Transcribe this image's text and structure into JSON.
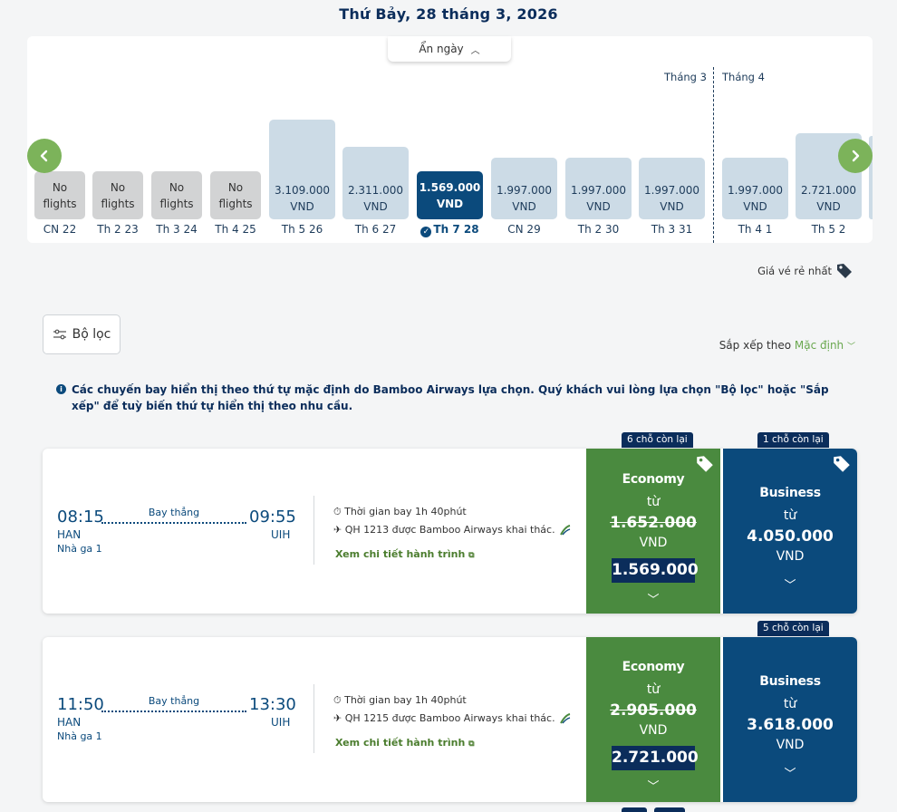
{
  "header": {
    "date_title": "Thứ Bảy, 28 tháng 3, 2026"
  },
  "calendar": {
    "hide_label": "Ẩn ngày",
    "month_left": "Tháng 3",
    "month_right": "Tháng 4",
    "days": [
      {
        "top": "No",
        "bottom": "flights",
        "label": "CN 22",
        "state": "no-flights"
      },
      {
        "top": "No",
        "bottom": "flights",
        "label": "Th 2 23",
        "state": "no-flights"
      },
      {
        "top": "No",
        "bottom": "flights",
        "label": "Th 3 24",
        "state": "no-flights"
      },
      {
        "top": "No",
        "bottom": "flights",
        "label": "Th 4 25",
        "state": "no-flights"
      },
      {
        "top": "3.109.000",
        "bottom": "VND",
        "label": "Th 5 26",
        "state": "price"
      },
      {
        "top": "2.311.000",
        "bottom": "VND",
        "label": "Th 6 27",
        "state": "price"
      },
      {
        "top": "1.569.000",
        "bottom": "VND",
        "label": "Th 7 28",
        "state": "selected"
      },
      {
        "top": "1.997.000",
        "bottom": "VND",
        "label": "CN 29",
        "state": "price"
      },
      {
        "top": "1.997.000",
        "bottom": "VND",
        "label": "Th 2 30",
        "state": "price"
      },
      {
        "top": "1.997.000",
        "bottom": "VND",
        "label": "Th 3 31",
        "state": "price"
      },
      {
        "top": "1.997.000",
        "bottom": "VND",
        "label": "Th 4 1",
        "state": "price"
      },
      {
        "top": "2.721.000",
        "bottom": "VND",
        "label": "Th 5 2",
        "state": "price"
      }
    ]
  },
  "cheapest_label": "Giá vé rẻ nhất",
  "filter_label": "Bộ lọc",
  "sort": {
    "label": "Sắp xếp theo",
    "value": "Mặc định"
  },
  "info_text": "Các chuyến bay hiển thị theo thứ tự mặc định do Bamboo Airways lựa chọn. Quý khách vui lòng lựa chọn \"Bộ lọc\" hoặc \"Sắp xếp\" để tuỳ biến thứ tự hiển thị theo nhu cầu.",
  "flights": [
    {
      "depart_time": "08:15",
      "arrive_time": "09:55",
      "origin": "HAN",
      "destination": "UIH",
      "terminal": "Nhà ga 1",
      "direct": "Bay thẳng",
      "duration": "Thời gian bay 1h 40phút",
      "operator": "QH 1213 được Bamboo Airways khai thác.",
      "details_link": "Xem chi tiết hành trình",
      "economy": {
        "seats": "6 chỗ còn lại",
        "class": "Economy",
        "from": "từ",
        "old_price": "1.652.000",
        "currency": "VND",
        "price": "1.569.000"
      },
      "business": {
        "seats": "1 chỗ còn lại",
        "class": "Business",
        "from": "từ",
        "price": "4.050.000",
        "currency": "VND"
      }
    },
    {
      "depart_time": "11:50",
      "arrive_time": "13:30",
      "origin": "HAN",
      "destination": "UIH",
      "terminal": "Nhà ga 1",
      "direct": "Bay thẳng",
      "duration": "Thời gian bay 1h 40phút",
      "operator": "QH 1215 được Bamboo Airways khai thác.",
      "details_link": "Xem chi tiết hành trình",
      "economy": {
        "class": "Economy",
        "from": "từ",
        "old_price": "2.905.000",
        "currency": "VND",
        "price": "2.721.000"
      },
      "business": {
        "seats": "5 chỗ còn lại",
        "class": "Business",
        "from": "từ",
        "price": "3.618.000",
        "currency": "VND"
      }
    }
  ],
  "colors": {
    "brand_navy": "#0b4a7c",
    "brand_green": "#4a8a3f",
    "price_tile": "#ccdbe6",
    "no_flight_tile": "#d2d3d4"
  },
  "icons": {
    "prev": "chevron-left-icon",
    "next": "chevron-right-icon",
    "tag": "price-tag-icon",
    "filter": "filter-icon",
    "info": "info-icon"
  }
}
